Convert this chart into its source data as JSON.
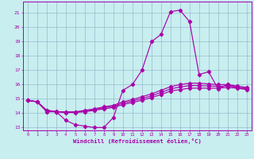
{
  "xlabel": "Windchill (Refroidissement éolien,°C)",
  "xlim": [
    -0.5,
    23.5
  ],
  "ylim": [
    12.8,
    21.8
  ],
  "xticks": [
    0,
    1,
    2,
    3,
    4,
    5,
    6,
    7,
    8,
    9,
    10,
    11,
    12,
    13,
    14,
    15,
    16,
    17,
    18,
    19,
    20,
    21,
    22,
    23
  ],
  "yticks": [
    13,
    14,
    15,
    16,
    17,
    18,
    19,
    20,
    21
  ],
  "bg_color": "#c8eef0",
  "line_color": "#aa00aa",
  "grid_color": "#99bbcc",
  "line_main_x": [
    0,
    1,
    2,
    3,
    4,
    5,
    6,
    7,
    8,
    9,
    10,
    11,
    12,
    13,
    14,
    15,
    16,
    17,
    18,
    19,
    20,
    21,
    22,
    23
  ],
  "line_main_y": [
    14.9,
    14.8,
    14.1,
    14.1,
    13.5,
    13.2,
    13.1,
    13.0,
    13.0,
    13.7,
    15.6,
    16.0,
    17.0,
    19.0,
    19.5,
    21.1,
    21.2,
    20.4,
    16.7,
    16.9,
    15.7,
    16.0,
    15.8,
    15.7
  ],
  "line_s1_y": [
    14.9,
    14.8,
    14.2,
    14.1,
    14.05,
    14.05,
    14.1,
    14.2,
    14.3,
    14.4,
    14.6,
    14.75,
    14.9,
    15.1,
    15.3,
    15.55,
    15.65,
    15.75,
    15.75,
    15.75,
    15.75,
    15.8,
    15.75,
    15.65
  ],
  "line_s2_y": [
    14.9,
    14.8,
    14.2,
    14.1,
    14.1,
    14.1,
    14.2,
    14.3,
    14.45,
    14.55,
    14.8,
    14.95,
    15.15,
    15.35,
    15.6,
    15.85,
    16.0,
    16.1,
    16.1,
    16.05,
    16.0,
    16.0,
    15.9,
    15.8
  ],
  "line_s3_y": [
    14.9,
    14.8,
    14.2,
    14.12,
    14.07,
    14.08,
    14.15,
    14.25,
    14.38,
    14.48,
    14.7,
    14.85,
    15.02,
    15.22,
    15.45,
    15.7,
    15.83,
    15.93,
    15.93,
    15.9,
    15.88,
    15.9,
    15.82,
    15.72
  ]
}
